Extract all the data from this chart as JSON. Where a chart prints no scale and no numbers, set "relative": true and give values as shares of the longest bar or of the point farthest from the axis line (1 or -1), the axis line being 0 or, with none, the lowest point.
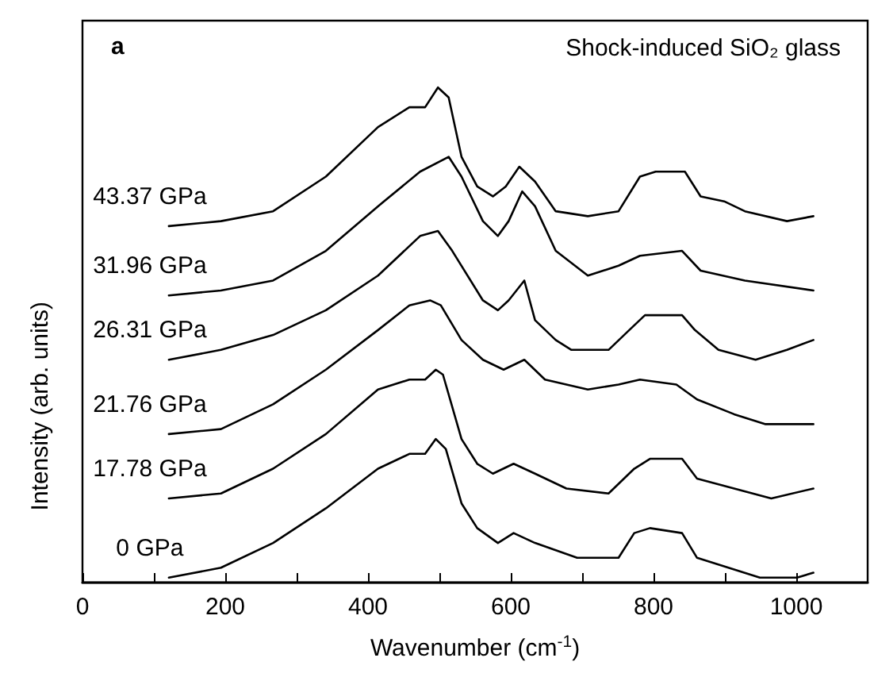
{
  "chart_data": {
    "type": "line",
    "relative": true,
    "title": "Shock-induced SiO₂ glass",
    "xlabel": "Wavenumber (cm$^{-1}$)",
    "ylabel": "Intensity (arb. units)",
    "annotations": [
      "a"
    ],
    "xlim": [
      0,
      1100
    ],
    "xticks": [
      0,
      {
        "value": 100,
        "label": null
      },
      200,
      {
        "value": 300,
        "label": null
      },
      400,
      {
        "value": 500,
        "label": null
      },
      600,
      {
        "value": 700,
        "label": null
      },
      800,
      {
        "value": 900,
        "label": null
      },
      1000
    ],
    "grid": false,
    "legend": false,
    "marker": "none",
    "line_style": "solid",
    "series": [
      {
        "name": "43.37 GPa",
        "color": "#000000",
        "x": [
          121,
          194,
          267,
          341,
          414,
          458,
          480,
          498,
          513,
          531,
          553,
          575,
          593,
          612,
          634,
          663,
          708,
          751,
          781,
          803,
          844,
          866,
          899,
          928,
          987,
          1024
        ],
        "values": [
          0.72,
          0.73,
          0.75,
          0.82,
          0.92,
          0.96,
          0.96,
          1.0,
          0.98,
          0.86,
          0.8,
          0.78,
          0.8,
          0.84,
          0.81,
          0.75,
          0.74,
          0.75,
          0.82,
          0.83,
          0.83,
          0.78,
          0.77,
          0.75,
          0.73,
          0.74
        ]
      },
      {
        "name": "31.96 GPa",
        "color": "#000000",
        "x": [
          121,
          194,
          267,
          341,
          414,
          473,
          513,
          531,
          561,
          582,
          597,
          616,
          634,
          663,
          708,
          751,
          781,
          840,
          866,
          928,
          1024
        ],
        "values": [
          0.58,
          0.59,
          0.61,
          0.67,
          0.76,
          0.83,
          0.86,
          0.82,
          0.73,
          0.7,
          0.73,
          0.79,
          0.76,
          0.67,
          0.62,
          0.64,
          0.66,
          0.67,
          0.63,
          0.61,
          0.59
        ]
      },
      {
        "name": "26.31 GPa",
        "color": "#000000",
        "x": [
          121,
          194,
          267,
          341,
          414,
          473,
          498,
          518,
          561,
          582,
          597,
          619,
          634,
          663,
          685,
          737,
          766,
          788,
          840,
          858,
          891,
          943,
          987,
          1024
        ],
        "values": [
          0.45,
          0.47,
          0.5,
          0.55,
          0.62,
          0.7,
          0.71,
          0.67,
          0.57,
          0.55,
          0.57,
          0.61,
          0.53,
          0.49,
          0.47,
          0.47,
          0.51,
          0.54,
          0.54,
          0.51,
          0.47,
          0.45,
          0.47,
          0.49
        ]
      },
      {
        "name": "21.76 GPa",
        "color": "#000000",
        "x": [
          121,
          194,
          267,
          341,
          414,
          458,
          487,
          502,
          531,
          561,
          590,
          619,
          648,
          708,
          751,
          781,
          832,
          861,
          913,
          957,
          1024
        ],
        "values": [
          0.3,
          0.31,
          0.36,
          0.43,
          0.51,
          0.56,
          0.57,
          0.56,
          0.49,
          0.45,
          0.43,
          0.45,
          0.41,
          0.39,
          0.4,
          0.41,
          0.4,
          0.37,
          0.34,
          0.32,
          0.32
        ]
      },
      {
        "name": "17.78 GPa",
        "color": "#000000",
        "x": [
          121,
          194,
          267,
          341,
          414,
          458,
          480,
          495,
          505,
          531,
          553,
          575,
          604,
          634,
          678,
          737,
          773,
          795,
          840,
          861,
          913,
          965,
          1024
        ],
        "values": [
          0.17,
          0.18,
          0.23,
          0.3,
          0.39,
          0.41,
          0.41,
          0.43,
          0.42,
          0.29,
          0.24,
          0.22,
          0.24,
          0.22,
          0.19,
          0.18,
          0.23,
          0.25,
          0.25,
          0.21,
          0.19,
          0.17,
          0.19
        ]
      },
      {
        "name": "0 GPa",
        "color": "#000000",
        "x": [
          121,
          194,
          267,
          341,
          414,
          458,
          480,
          495,
          509,
          531,
          553,
          582,
          604,
          634,
          693,
          751,
          773,
          795,
          840,
          861,
          905,
          949,
          1001,
          1024
        ],
        "values": [
          0.01,
          0.03,
          0.08,
          0.15,
          0.23,
          0.26,
          0.26,
          0.29,
          0.27,
          0.16,
          0.11,
          0.08,
          0.1,
          0.08,
          0.05,
          0.05,
          0.1,
          0.11,
          0.1,
          0.05,
          0.03,
          0.01,
          0.01,
          0.02
        ]
      }
    ]
  }
}
